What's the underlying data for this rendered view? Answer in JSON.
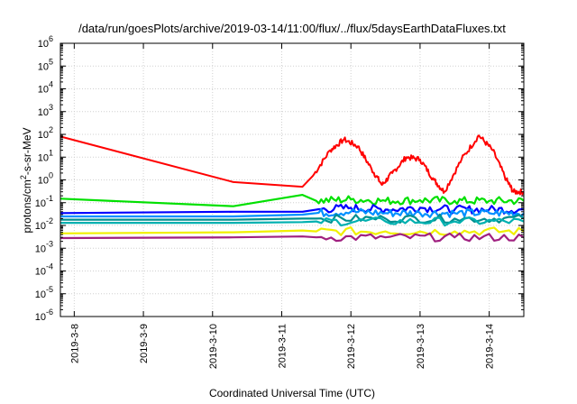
{
  "chart_data": {
    "type": "line",
    "title": "/data/run/goesPlots/archive/2019-03-14/11:00/flux/../flux/5daysEarthDataFluxes.txt",
    "xlabel": "Coordinated Universal Time (UTC)",
    "ylabel_parts": [
      "protons/cm",
      "2",
      "-s-sr-MeV"
    ],
    "yscale": "log",
    "ylim_exp": [
      -6,
      6
    ],
    "y_ticks": [
      {
        "base": "10",
        "exp": "-6"
      },
      {
        "base": "10",
        "exp": "-5"
      },
      {
        "base": "10",
        "exp": "-4"
      },
      {
        "base": "10",
        "exp": "-3"
      },
      {
        "base": "10",
        "exp": "-2"
      },
      {
        "base": "10",
        "exp": "-1"
      },
      {
        "base": "10",
        "exp": "0"
      },
      {
        "base": "10",
        "exp": "1"
      },
      {
        "base": "10",
        "exp": "2"
      },
      {
        "base": "10",
        "exp": "3"
      },
      {
        "base": "10",
        "exp": "4"
      },
      {
        "base": "10",
        "exp": "5"
      },
      {
        "base": "10",
        "exp": "6"
      }
    ],
    "xlim_days": [
      7.8,
      14.5
    ],
    "x_ticks": [
      {
        "day": 8,
        "label": "2019-3-8"
      },
      {
        "day": 9,
        "label": "2019-3-9"
      },
      {
        "day": 10,
        "label": "2019-3-10"
      },
      {
        "day": 11,
        "label": "2019-3-11"
      },
      {
        "day": 12,
        "label": "2019-3-12"
      },
      {
        "day": 13,
        "label": "2019-3-13"
      },
      {
        "day": 14,
        "label": "2019-3-14"
      }
    ],
    "grid": true,
    "series": [
      {
        "color": "#ff0000",
        "points": [
          [
            7.8,
            80
          ],
          [
            10.3,
            0.8
          ],
          [
            11.3,
            0.5
          ],
          [
            11.45,
            1.5
          ],
          [
            11.7,
            20
          ],
          [
            11.9,
            60
          ],
          [
            12.1,
            30
          ],
          [
            12.3,
            3
          ],
          [
            12.45,
            0.6
          ],
          [
            12.6,
            2
          ],
          [
            12.8,
            10
          ],
          [
            13.0,
            8
          ],
          [
            13.2,
            1
          ],
          [
            13.35,
            0.3
          ],
          [
            13.6,
            8
          ],
          [
            13.85,
            90
          ],
          [
            14.05,
            20
          ],
          [
            14.25,
            1
          ],
          [
            14.35,
            0.3
          ],
          [
            14.5,
            0.3
          ]
        ]
      },
      {
        "color": "#00e000",
        "points": [
          [
            7.8,
            0.15
          ],
          [
            10.3,
            0.07
          ],
          [
            11.3,
            0.22
          ],
          [
            11.5,
            0.12
          ],
          [
            12.0,
            0.14
          ],
          [
            12.5,
            0.12
          ],
          [
            13.0,
            0.13
          ],
          [
            13.5,
            0.12
          ],
          [
            14.0,
            0.12
          ],
          [
            14.5,
            0.12
          ]
        ]
      },
      {
        "color": "#0000ff",
        "points": [
          [
            7.8,
            0.035
          ],
          [
            10.3,
            0.04
          ],
          [
            11.3,
            0.04
          ],
          [
            11.5,
            0.05
          ],
          [
            12.0,
            0.06
          ],
          [
            12.5,
            0.05
          ],
          [
            13.0,
            0.06
          ],
          [
            13.5,
            0.05
          ],
          [
            14.0,
            0.05
          ],
          [
            14.5,
            0.05
          ]
        ]
      },
      {
        "color": "#0090ff",
        "points": [
          [
            7.8,
            0.025
          ],
          [
            10.3,
            0.025
          ],
          [
            11.3,
            0.03
          ],
          [
            11.5,
            0.035
          ],
          [
            12.0,
            0.04
          ],
          [
            12.5,
            0.035
          ],
          [
            13.0,
            0.035
          ],
          [
            13.5,
            0.035
          ],
          [
            14.0,
            0.035
          ],
          [
            14.5,
            0.035
          ]
        ]
      },
      {
        "color": "#008f8f",
        "points": [
          [
            7.8,
            0.018
          ],
          [
            10.3,
            0.018
          ],
          [
            11.3,
            0.02
          ],
          [
            11.5,
            0.02
          ],
          [
            12.5,
            0.02
          ],
          [
            13.5,
            0.02
          ],
          [
            14.5,
            0.02
          ]
        ]
      },
      {
        "color": "#00b0b0",
        "points": [
          [
            7.8,
            0.013
          ],
          [
            10.3,
            0.013
          ],
          [
            11.3,
            0.014
          ],
          [
            11.5,
            0.015
          ],
          [
            12.5,
            0.015
          ],
          [
            13.5,
            0.015
          ],
          [
            14.5,
            0.015
          ]
        ]
      },
      {
        "color": "#f0f000",
        "points": [
          [
            7.8,
            0.0045
          ],
          [
            10.3,
            0.005
          ],
          [
            11.3,
            0.006
          ],
          [
            11.5,
            0.0055
          ],
          [
            12.5,
            0.0055
          ],
          [
            13.5,
            0.0055
          ],
          [
            14.5,
            0.0055
          ]
        ]
      },
      {
        "color": "#a02080",
        "points": [
          [
            7.8,
            0.0028
          ],
          [
            10.3,
            0.003
          ],
          [
            11.3,
            0.0033
          ],
          [
            11.5,
            0.003
          ],
          [
            12.5,
            0.003
          ],
          [
            13.5,
            0.003
          ],
          [
            14.5,
            0.003
          ]
        ]
      }
    ]
  }
}
